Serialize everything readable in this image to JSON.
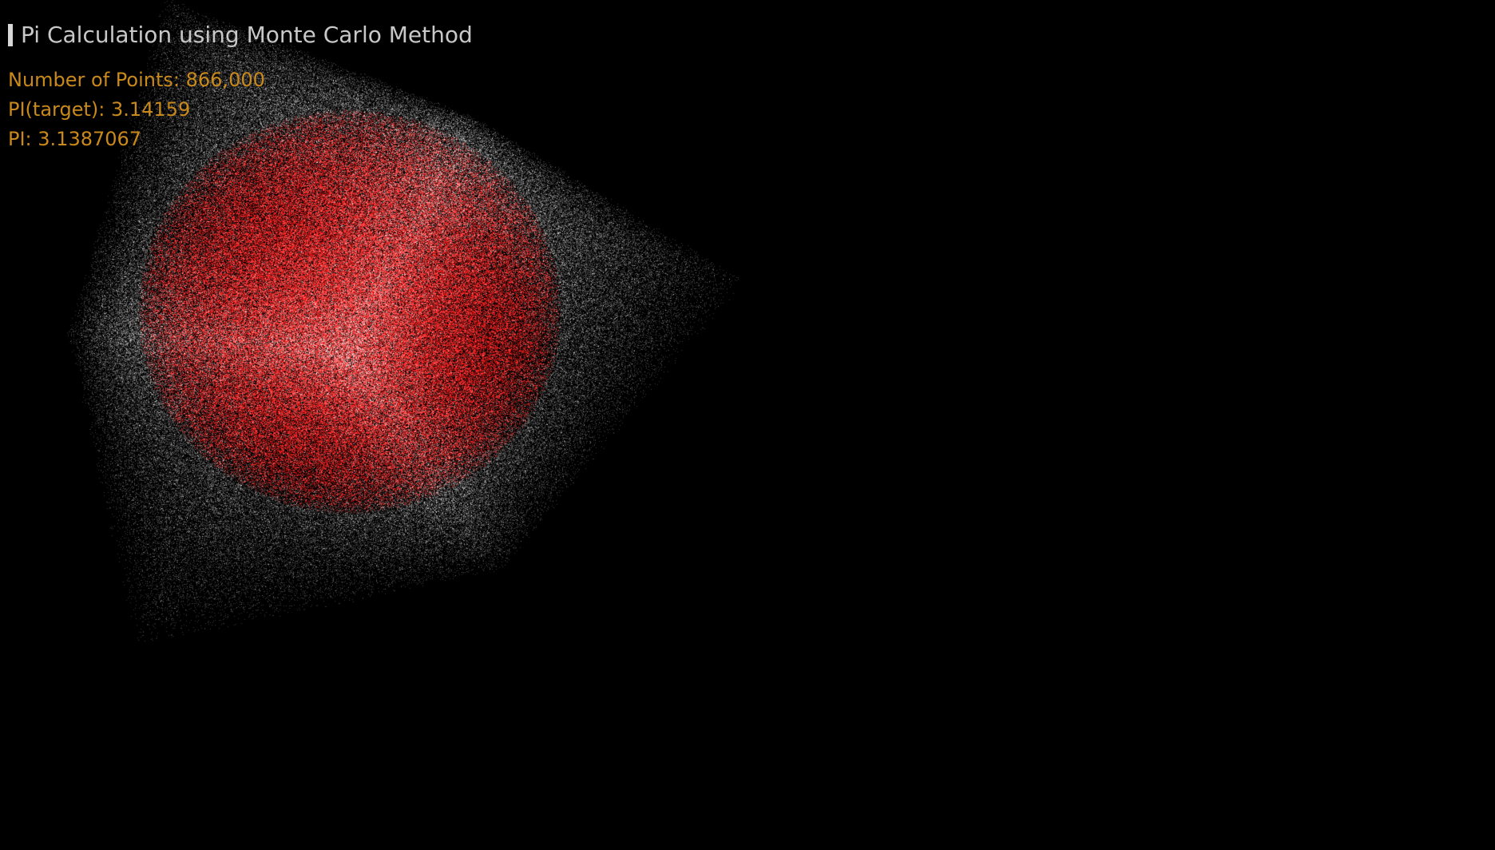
{
  "app": {
    "title": "Pi Calculation using Monte Carlo Method"
  },
  "stats": {
    "points_label": "Number of Points:",
    "points_value": "866,000",
    "target_label": "PI(target):",
    "target_value": "3.14159",
    "estimate_label": "PI:",
    "estimate_value": "3.1387067"
  },
  "colors": {
    "background": "#000000",
    "title_text": "#c8c8c8",
    "stats_text": "#c9891b",
    "inside_points": "#e01010",
    "outside_points": "#ffffff"
  },
  "scene": {
    "type": "3d-point-cloud",
    "inside_shape": "sphere",
    "bounding_shape": "cube"
  }
}
